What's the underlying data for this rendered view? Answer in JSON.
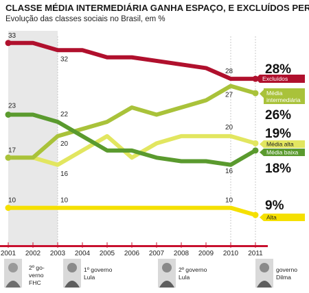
{
  "chart_data": {
    "type": "line",
    "title": "CLASSE MÉDIA INTERMEDIÁRIA GANHA ESPAÇO, E EXCLUÍDOS PERDEM",
    "subtitle": "Evolução das classes sociais no Brasil, em %",
    "x": [
      "2001",
      "2002",
      "2003",
      "2004",
      "2005",
      "2006",
      "2007",
      "2008",
      "2009",
      "2010",
      "2011"
    ],
    "series": [
      {
        "name": "Excluídos",
        "values": [
          33,
          33,
          32,
          32,
          31,
          31,
          30.5,
          30,
          29.5,
          28,
          28
        ],
        "color": "#b0102d",
        "point_labels": {
          "0": "33",
          "2": "32",
          "9": "28"
        },
        "final_label": "28%"
      },
      {
        "name": "Média intermediária",
        "values": [
          17,
          17,
          20,
          21,
          22,
          24,
          23,
          24,
          25,
          27,
          26
        ],
        "color": "#a9c23a",
        "point_labels": {
          "0": "17",
          "2": "20",
          "9": "27"
        },
        "final_label": "26%"
      },
      {
        "name": "Média alta",
        "values": [
          17,
          17,
          16,
          18,
          20,
          17,
          19,
          20,
          20,
          20,
          19
        ],
        "color": "#e2e660",
        "point_labels": {
          "2": "16",
          "9": "20"
        },
        "final_label": "19%"
      },
      {
        "name": "Média baixa",
        "values": [
          23,
          23,
          22,
          20,
          18,
          18,
          17,
          16.5,
          16.5,
          16,
          18
        ],
        "color": "#5a9a2e",
        "point_labels": {
          "0": "23",
          "2": "22",
          "9": "16"
        },
        "final_label": "18%"
      },
      {
        "name": "Alta",
        "values": [
          10,
          10,
          10,
          10,
          10,
          10,
          10,
          10,
          10,
          10,
          9
        ],
        "color": "#f5e000",
        "point_labels": {
          "0": "10",
          "2": "10",
          "9": "10"
        },
        "final_label": "9%"
      }
    ],
    "legend_labels": {
      "excluidos": "Excluídos",
      "intermediaria": [
        "Média",
        "intermediária"
      ],
      "alta_media": "Média alta",
      "baixa": "Média baixa",
      "alta": "Alta"
    },
    "shaded_period": [
      "2001",
      "2003"
    ],
    "governments": [
      {
        "period": "2001-2002",
        "lines": [
          "2º go-",
          "verno",
          "FHC"
        ],
        "icon": "portrait-fhc"
      },
      {
        "period": "2003-2006",
        "lines": [
          "1º governo",
          "Lula"
        ],
        "icon": "portrait-lula-1"
      },
      {
        "period": "2007-2010",
        "lines": [
          "2º governo",
          "Lula"
        ],
        "icon": "portrait-lula-2"
      },
      {
        "period": "2011",
        "lines": [
          "governo",
          "Dilma"
        ],
        "icon": "portrait-dilma"
      }
    ],
    "colors": {
      "axis_bar": "#c8102e",
      "shade": "#e8e8e8",
      "gridline": "#bbbbbb"
    }
  }
}
